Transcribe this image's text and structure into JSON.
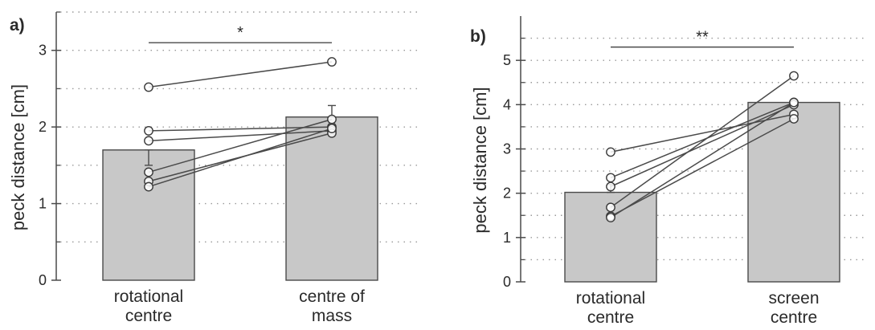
{
  "chart_data": [
    {
      "type": "bar",
      "panel_label": "a)",
      "ylabel": "peck distance [cm]",
      "ylim": [
        0,
        3.5
      ],
      "yticks_major": [
        0,
        1,
        2,
        3
      ],
      "yticks_minor": [
        0.5,
        1.5,
        2.5,
        3.5
      ],
      "grid": "dotted horizontal",
      "categories": [
        {
          "line1": "rotational",
          "line2": "centre"
        },
        {
          "line1": "centre of",
          "line2": "mass"
        }
      ],
      "bar_values": [
        1.7,
        2.13
      ],
      "error_bars": [
        {
          "low": 1.5,
          "high": 1.7
        },
        {
          "low": 2.13,
          "high": 2.28
        }
      ],
      "paired_points": [
        [
          2.52,
          2.85
        ],
        [
          1.95,
          2.0
        ],
        [
          1.82,
          1.95
        ],
        [
          1.41,
          2.1
        ],
        [
          1.29,
          1.92
        ],
        [
          1.22,
          1.98
        ]
      ],
      "significance": {
        "label": "*",
        "y": 3.1
      }
    },
    {
      "type": "bar",
      "panel_label": "b)",
      "ylabel": "peck distance [cm]",
      "ylim": [
        0,
        6
      ],
      "yticks_major": [
        0,
        1,
        2,
        3,
        4,
        5
      ],
      "yticks_minor": [
        0.5,
        1.5,
        2.5,
        3.5,
        4.5,
        5.5
      ],
      "grid": "dotted horizontal",
      "categories": [
        {
          "line1": "rotational",
          "line2": "centre"
        },
        {
          "line1": "screen",
          "line2": "centre"
        }
      ],
      "bar_values": [
        2.02,
        4.05
      ],
      "error_bars": [
        {
          "low": 2.02,
          "high": 2.2
        },
        {
          "low": 3.95,
          "high": 4.05
        }
      ],
      "paired_points": [
        [
          2.93,
          3.78
        ],
        [
          2.35,
          4.05
        ],
        [
          2.15,
          4.0
        ],
        [
          1.68,
          4.65
        ],
        [
          1.48,
          3.68
        ],
        [
          1.45,
          4.05
        ]
      ],
      "significance": {
        "label": "**",
        "y": 5.3
      }
    }
  ]
}
